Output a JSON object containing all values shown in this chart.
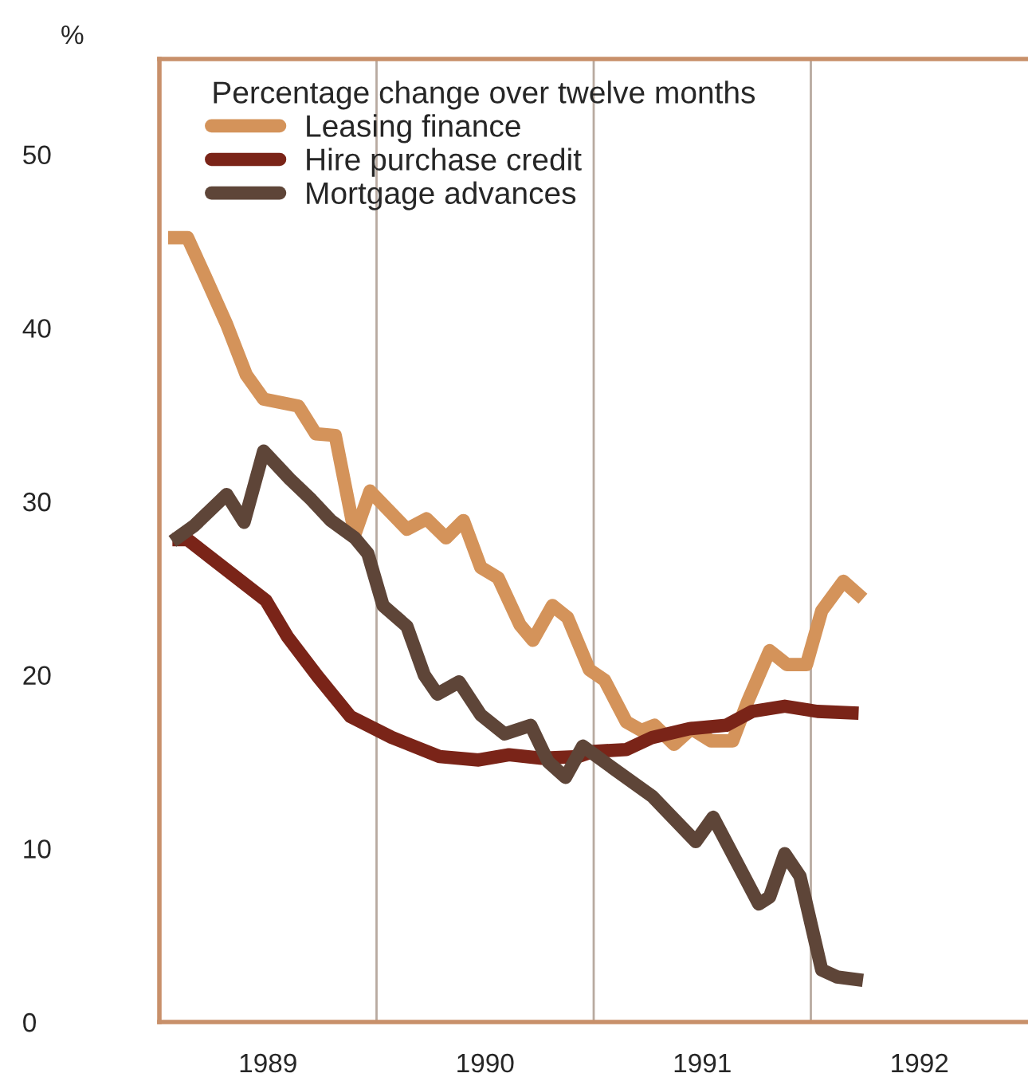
{
  "chart_data": {
    "type": "line",
    "ylabel": "%",
    "legend_title": "Percentage change over twelve months",
    "legend": "top left",
    "line_style": "solid",
    "marker": "none",
    "xlim": [
      1989,
      1993
    ],
    "ylim": [
      0,
      55.5
    ],
    "xticks": [
      {
        "value": 1989.5,
        "label": "1989"
      },
      {
        "value": 1990.5,
        "label": "1990"
      },
      {
        "value": 1991.5,
        "label": "1991"
      },
      {
        "value": 1992.5,
        "label": "1992"
      }
    ],
    "yticks": [
      0,
      10,
      20,
      30,
      40,
      50
    ],
    "ref_lines": [
      {
        "axis": "x",
        "value": 1990,
        "label": null,
        "color": "#b8aaa0"
      },
      {
        "axis": "x",
        "value": 1991,
        "label": null,
        "color": "#b8aaa0"
      },
      {
        "axis": "x",
        "value": 1992,
        "label": null,
        "color": "#b8aaa0"
      }
    ],
    "series": [
      {
        "name": "Leasing finance",
        "color": "#d4935a",
        "x": [
          1989.04,
          1989.13,
          1989.21,
          1989.31,
          1989.4,
          1989.48,
          1989.64,
          1989.72,
          1989.81,
          1989.9,
          1989.97,
          1990.14,
          1990.23,
          1990.32,
          1990.4,
          1990.48,
          1990.56,
          1990.66,
          1990.72,
          1990.81,
          1990.88,
          1990.98,
          1991.05,
          1991.15,
          1991.22,
          1991.28,
          1991.37,
          1991.45,
          1991.54,
          1991.64,
          1991.71,
          1991.81,
          1991.89,
          1991.98,
          1992.05,
          1992.15,
          1992.24
        ],
        "values": [
          45.2,
          45.2,
          43.0,
          40.2,
          37.3,
          35.9,
          35.5,
          33.9,
          33.8,
          28.1,
          30.6,
          28.4,
          29.0,
          27.9,
          28.9,
          26.2,
          25.6,
          22.9,
          22.0,
          24.0,
          23.3,
          20.3,
          19.7,
          17.3,
          16.8,
          17.1,
          16.0,
          16.9,
          16.2,
          16.2,
          18.5,
          21.4,
          20.6,
          20.6,
          23.7,
          25.4,
          24.4
        ]
      },
      {
        "name": "Hire purchase credit",
        "color": "#7a2418",
        "x": [
          1989.06,
          1989.13,
          1989.49,
          1989.59,
          1989.73,
          1989.88,
          1990.07,
          1990.29,
          1990.47,
          1990.61,
          1990.76,
          1990.93,
          1991.0,
          1991.15,
          1991.27,
          1991.44,
          1991.61,
          1991.73,
          1991.88,
          1992.03,
          1992.22
        ],
        "values": [
          27.8,
          27.8,
          24.3,
          22.2,
          19.9,
          17.6,
          16.4,
          15.3,
          15.1,
          15.4,
          15.2,
          15.3,
          15.6,
          15.7,
          16.4,
          16.9,
          17.1,
          17.9,
          18.2,
          17.9,
          17.8
        ]
      },
      {
        "name": "Mortgage advances",
        "color": "#5e4538",
        "x": [
          1989.06,
          1989.16,
          1989.31,
          1989.39,
          1989.48,
          1989.6,
          1989.7,
          1989.79,
          1989.9,
          1989.96,
          1990.03,
          1990.14,
          1990.22,
          1990.28,
          1990.38,
          1990.48,
          1990.59,
          1990.71,
          1990.79,
          1990.87,
          1990.95,
          1991.07,
          1991.27,
          1991.47,
          1991.55,
          1991.76,
          1991.81,
          1991.88,
          1991.95,
          1992.05,
          1992.12,
          1992.24
        ],
        "values": [
          27.7,
          28.6,
          30.4,
          28.8,
          32.9,
          31.3,
          30.1,
          28.9,
          27.9,
          27.0,
          24.0,
          22.8,
          20.0,
          18.9,
          19.6,
          17.7,
          16.6,
          17.1,
          15.0,
          14.1,
          15.9,
          14.8,
          13.0,
          10.4,
          11.8,
          6.8,
          7.2,
          9.7,
          8.4,
          3.0,
          2.6,
          2.4
        ]
      }
    ]
  }
}
